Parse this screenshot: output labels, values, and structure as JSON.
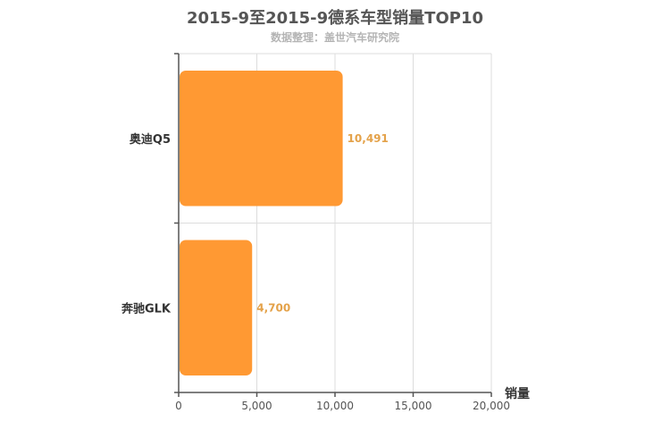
{
  "title": "2015-9至2015-9德系车型销量TOP10",
  "subtitle": "数据整理：盖世汽车研究院",
  "chart_data": {
    "type": "bar",
    "orientation": "horizontal",
    "categories": [
      "奥迪Q5",
      "奔驰GLK"
    ],
    "values": [
      10491,
      4700
    ],
    "value_labels": [
      "10,491",
      "4,700"
    ],
    "xlabel": "销量",
    "xlim": [
      0,
      20000
    ],
    "xticks": [
      0,
      5000,
      10000,
      15000,
      20000
    ],
    "xtick_labels": [
      "0",
      "5,000",
      "10,000",
      "15,000",
      "20,000"
    ],
    "grid": true,
    "bar_color": "#ff9933",
    "label_color": "#e4a24a"
  }
}
